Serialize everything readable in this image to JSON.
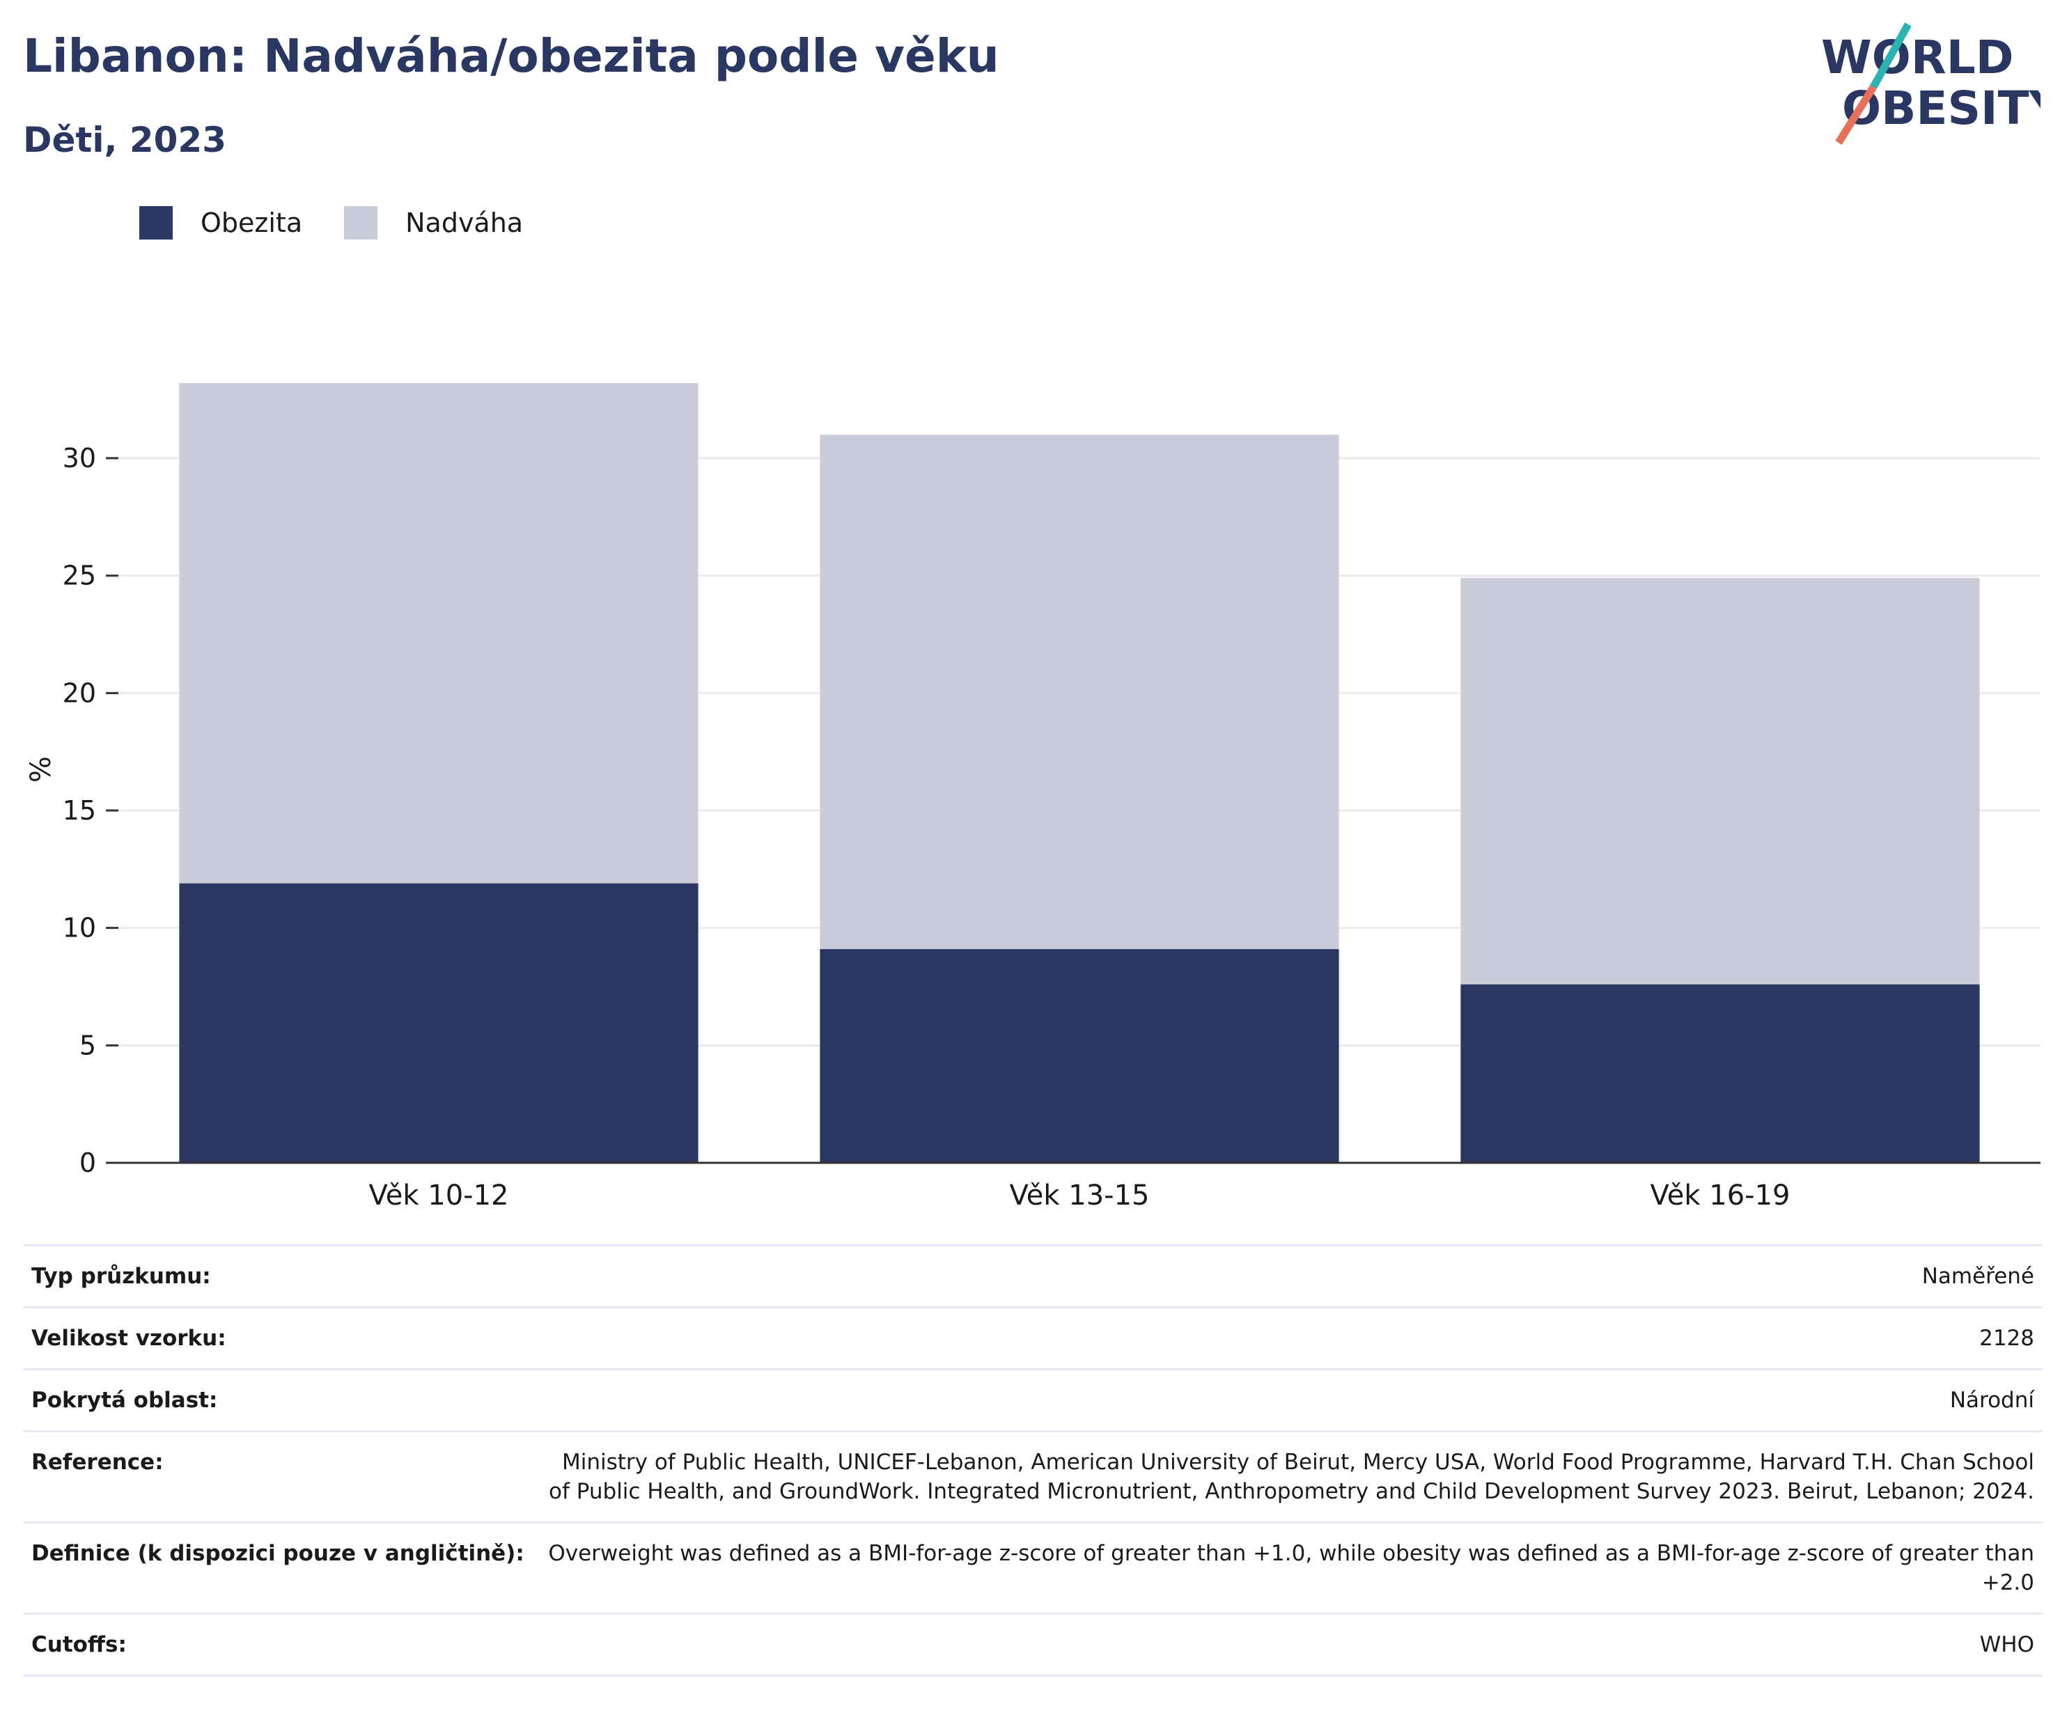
{
  "header": {
    "title": "Libanon: Nadváha/obezita podle věku",
    "subtitle": "Děti, 2023"
  },
  "logo": {
    "line1": "WORLD",
    "line2": "OBESITY"
  },
  "colors": {
    "obesity": "#2a3763",
    "overweight": "#cacdd9",
    "title": "#2a3763",
    "logo_teal": "#2bb3b1",
    "logo_coral": "#e8705a"
  },
  "chart_data": {
    "type": "bar",
    "stacked": true,
    "categories": [
      "Věk 10-12",
      "Věk 13-15",
      "Věk 16-19"
    ],
    "series": [
      {
        "name": "Obezita",
        "values": [
          11.9,
          9.1,
          7.6
        ]
      },
      {
        "name": "Nadváha",
        "values": [
          21.3,
          21.9,
          17.3
        ]
      }
    ],
    "ylabel": "%",
    "ylim": [
      0,
      33.5
    ],
    "yticks": [
      0,
      5,
      10,
      15,
      20,
      25,
      30
    ],
    "grid": true,
    "legend_position": "top-left"
  },
  "info": [
    {
      "label": "Typ průzkumu:",
      "value": "Naměřené"
    },
    {
      "label": "Velikost vzorku:",
      "value": "2128"
    },
    {
      "label": "Pokrytá oblast:",
      "value": "Národní"
    },
    {
      "label": "Reference:",
      "value": "Ministry of Public Health, UNICEF-Lebanon, American University of Beirut, Mercy USA, World Food Programme, Harvard T.H. Chan School of Public Health, and GroundWork. Integrated Micronutrient, Anthropometry and Child Development Survey 2023. Beirut, Lebanon; 2024."
    },
    {
      "label": "Definice (k dispozici pouze v angličtině):",
      "value": "Overweight was defined as a BMI-for-age z-score of greater than +1.0, while obesity was defined as a BMI-for-age z-score of greater than +2.0"
    },
    {
      "label": "Cutoffs:",
      "value": "WHO"
    }
  ]
}
